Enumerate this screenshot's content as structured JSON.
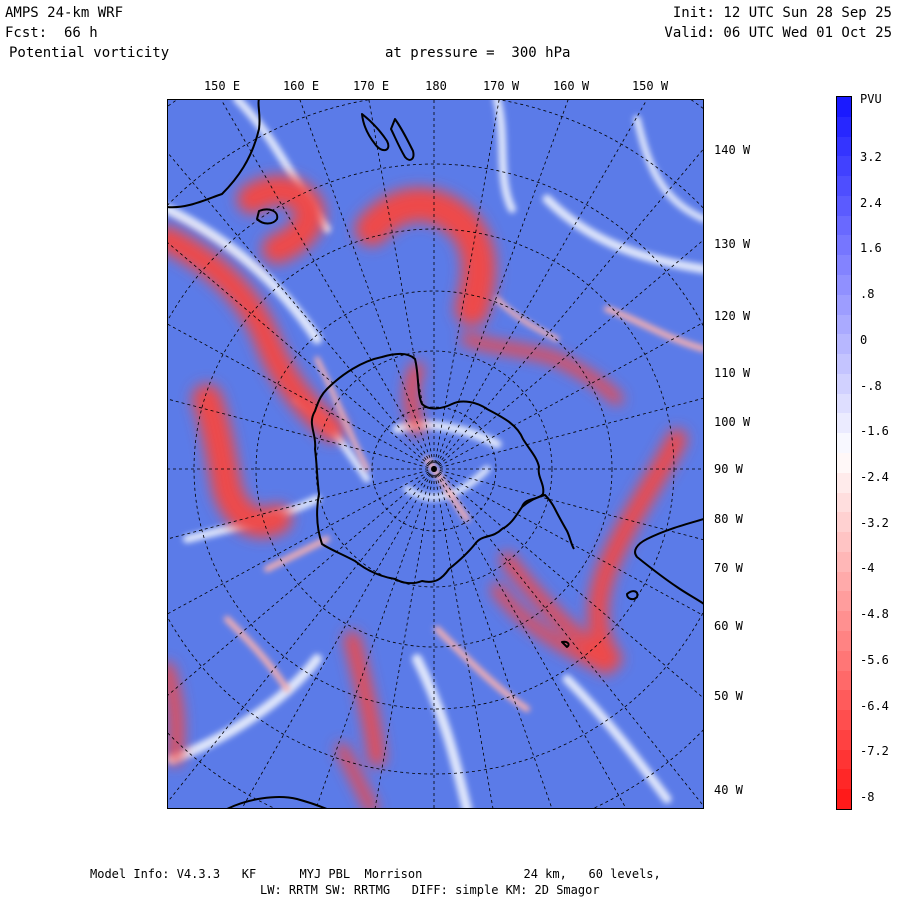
{
  "header": {
    "model": "AMPS 24-km WRF",
    "forecast_label": "Fcst:",
    "forecast_value": "66 h",
    "field": "Potential vorticity",
    "level": "at pressure =  300 hPa",
    "init": "Init: 12 UTC Sun 28 Sep 25",
    "valid": "Valid: 06 UTC Wed 01 Oct 25"
  },
  "map": {
    "projection": "south-polar stereographic",
    "top_labels": [
      "150 E",
      "160 E",
      "170 E",
      "180",
      "170 W",
      "160 W",
      "150 W"
    ],
    "right_labels": [
      "140 W",
      "130 W",
      "120 W",
      "110 W",
      "100 W",
      "90 W",
      "80 W",
      "70 W",
      "60 W",
      "50 W",
      "40 W"
    ]
  },
  "colorbar": {
    "title": "PVU",
    "labels": [
      "3.2",
      "2.4",
      "1.6",
      ".8",
      "0",
      "-.8",
      "-1.6",
      "-2.4",
      "-3.2",
      "-4",
      "-4.8",
      "-5.6",
      "-6.4",
      "-7.2",
      "-8"
    ],
    "top_color": "#1a1aff",
    "mid_color": "#ffffff",
    "bottom_color": "#ff1a1a"
  },
  "footer": {
    "line1": "Model Info: V4.3.3   KF      MYJ PBL  Morrison              24 km,   60 levels,",
    "line2": "LW: RRTM SW: RRTMG   DIFF: simple KM: 2D Smagor"
  },
  "colors": {
    "background_field": "#5b7be8",
    "positive_red": "#ee4a4a",
    "light_red": "#f7b0b0",
    "land_outline": "#000000"
  }
}
